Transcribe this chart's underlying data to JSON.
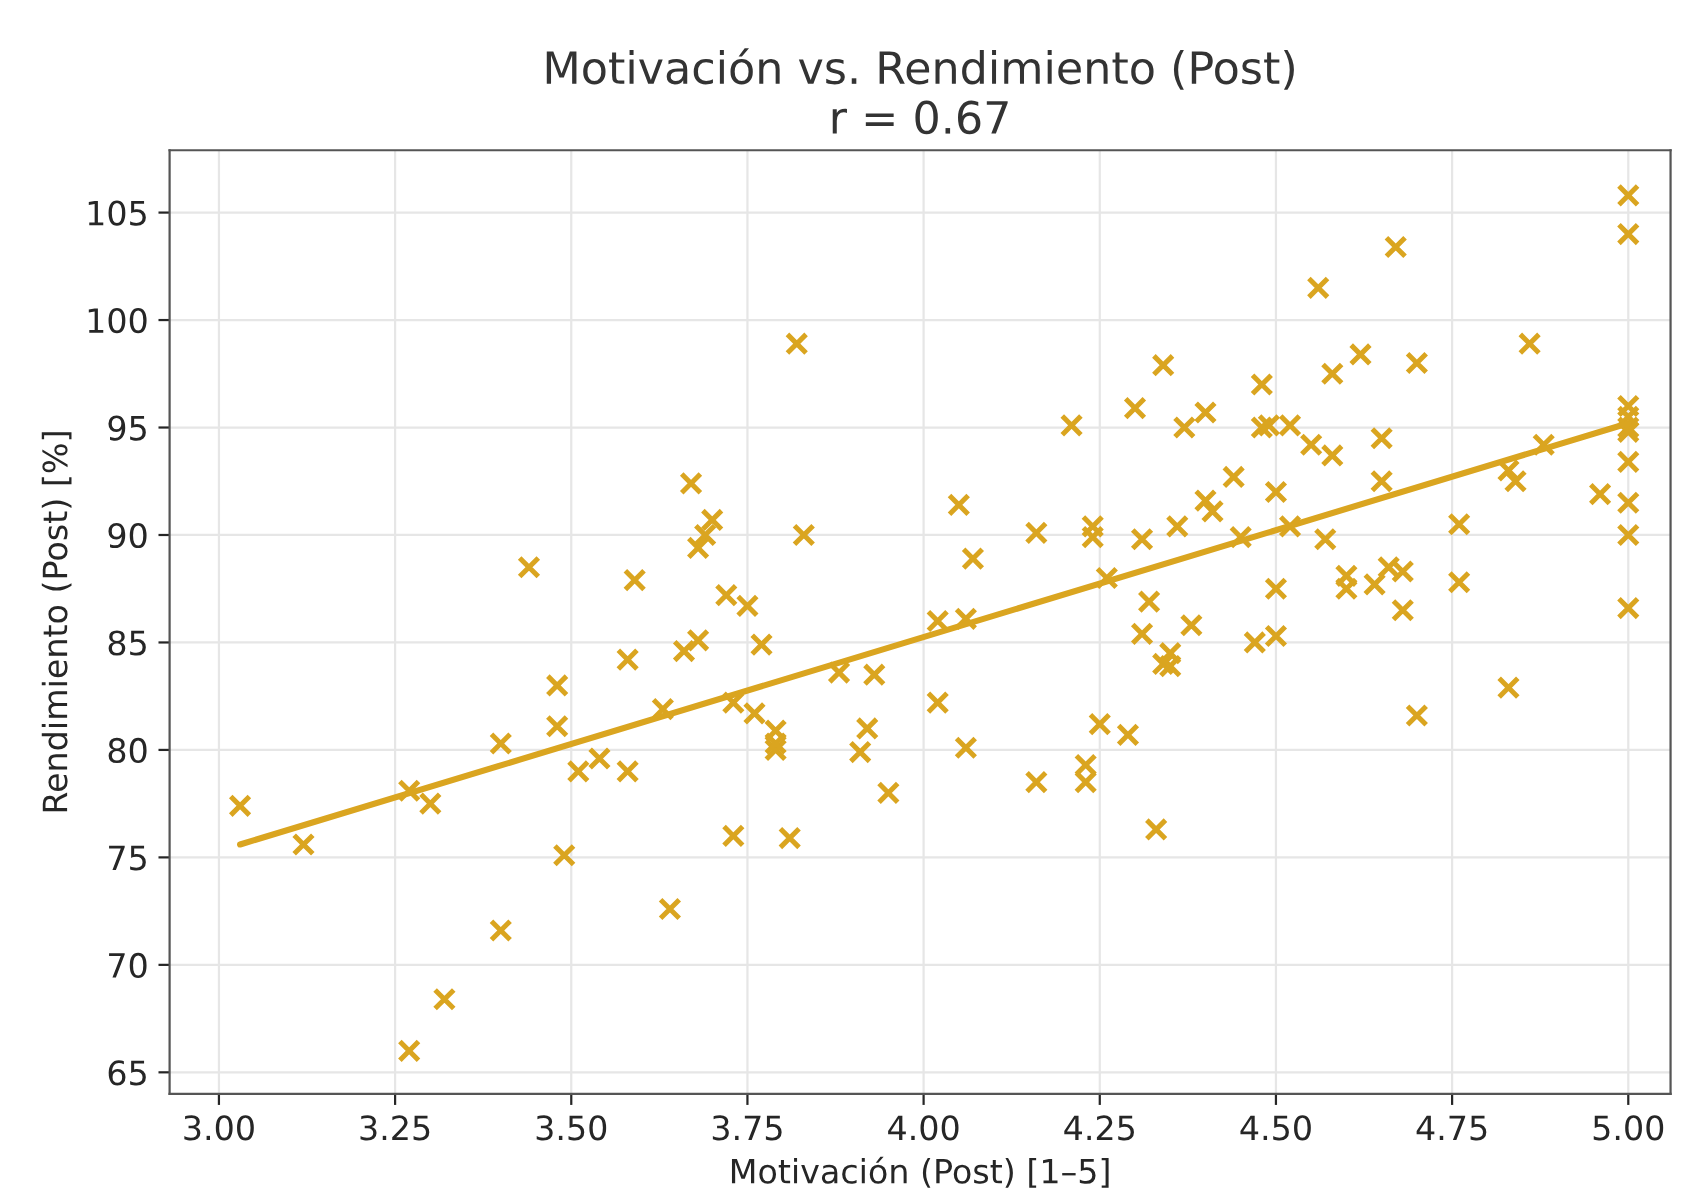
{
  "chart_data": {
    "type": "scatter",
    "title": "Motivación vs. Rendimiento (Post)",
    "subtitle": "r = 0.67",
    "xlabel": "Motivación (Post) [1–5]",
    "ylabel": "Rendimiento (Post) [%]",
    "xlim": [
      2.93,
      5.06
    ],
    "xticks": [
      {
        "value": 3.0,
        "label": "3.00"
      },
      {
        "value": 3.25,
        "label": "3.25"
      },
      {
        "value": 3.5,
        "label": "3.50"
      },
      {
        "value": 3.75,
        "label": "3.75"
      },
      {
        "value": 4.0,
        "label": "4.00"
      },
      {
        "value": 4.25,
        "label": "4.25"
      },
      {
        "value": 4.5,
        "label": "4.50"
      },
      {
        "value": 4.75,
        "label": "4.75"
      },
      {
        "value": 5.0,
        "label": "5.00"
      }
    ],
    "ylim": [
      64,
      107.9
    ],
    "yticks": [
      65,
      70,
      75,
      80,
      85,
      90,
      95,
      100,
      105
    ],
    "grid": true,
    "legend": false,
    "series": [
      {
        "marker": "cross",
        "color": "#daa520",
        "x": [
          3.03,
          3.12,
          3.27,
          3.3,
          3.27,
          3.32,
          3.4,
          3.4,
          3.44,
          3.48,
          3.48,
          3.49,
          3.51,
          3.54,
          3.58,
          3.58,
          3.59,
          3.63,
          3.64,
          3.66,
          3.67,
          3.68,
          3.68,
          3.69,
          3.7,
          3.72,
          3.73,
          3.73,
          3.75,
          3.76,
          3.77,
          3.79,
          3.79,
          3.79,
          3.81,
          3.82,
          3.83,
          3.88,
          3.91,
          3.92,
          3.93,
          3.95,
          4.02,
          4.02,
          4.05,
          4.06,
          4.06,
          4.07,
          4.16,
          4.16,
          4.21,
          4.23,
          4.23,
          4.24,
          4.24,
          4.25,
          4.26,
          4.29,
          4.3,
          4.31,
          4.31,
          4.32,
          4.33,
          4.34,
          4.34,
          4.35,
          4.35,
          4.36,
          4.37,
          4.38,
          4.4,
          4.4,
          4.41,
          4.44,
          4.45,
          4.47,
          4.48,
          4.48,
          4.49,
          4.5,
          4.5,
          4.5,
          4.52,
          4.52,
          4.55,
          4.56,
          4.57,
          4.58,
          4.58,
          4.6,
          4.6,
          4.62,
          4.64,
          4.65,
          4.65,
          4.66,
          4.67,
          4.68,
          4.68,
          4.7,
          4.7,
          4.76,
          4.76,
          4.83,
          4.83,
          4.84,
          4.86,
          4.88,
          4.96,
          5.0,
          5.0,
          5.0,
          5.0,
          5.0,
          5.0,
          5.0,
          5.0,
          5.0,
          5.0
        ],
        "values": [
          77.4,
          75.6,
          78.1,
          77.5,
          66.0,
          68.4,
          80.3,
          71.6,
          88.5,
          83.0,
          81.1,
          75.1,
          79.0,
          79.6,
          79.0,
          84.2,
          87.9,
          81.9,
          72.6,
          84.6,
          92.4,
          85.1,
          89.4,
          90.0,
          90.7,
          87.2,
          82.2,
          76.0,
          86.7,
          81.7,
          84.9,
          80.9,
          80.0,
          80.3,
          75.9,
          98.9,
          90.0,
          83.6,
          79.9,
          81.0,
          83.5,
          78.0,
          82.2,
          86.0,
          91.4,
          80.1,
          86.1,
          88.9,
          90.1,
          78.5,
          95.1,
          79.3,
          78.5,
          90.4,
          89.9,
          81.2,
          88.0,
          80.7,
          95.9,
          85.4,
          89.8,
          86.9,
          76.3,
          97.9,
          84.0,
          84.5,
          83.9,
          90.4,
          95.0,
          85.8,
          91.6,
          95.7,
          91.1,
          92.7,
          89.9,
          85.0,
          97.0,
          95.0,
          95.1,
          85.3,
          87.5,
          92.0,
          95.1,
          90.4,
          94.2,
          101.5,
          89.8,
          93.7,
          97.5,
          88.1,
          87.5,
          98.4,
          87.7,
          92.5,
          94.5,
          88.5,
          103.4,
          86.5,
          88.3,
          81.6,
          98.0,
          87.8,
          90.5,
          93.0,
          82.9,
          92.5,
          98.9,
          94.2,
          91.9,
          105.8,
          104.0,
          96.0,
          95.5,
          95.0,
          94.8,
          93.4,
          91.5,
          90.0,
          86.6
        ]
      },
      {
        "type": "line",
        "color": "#daa520",
        "line_style": "solid",
        "x": [
          3.03,
          5.0
        ],
        "values": [
          75.6,
          95.2
        ]
      }
    ]
  }
}
